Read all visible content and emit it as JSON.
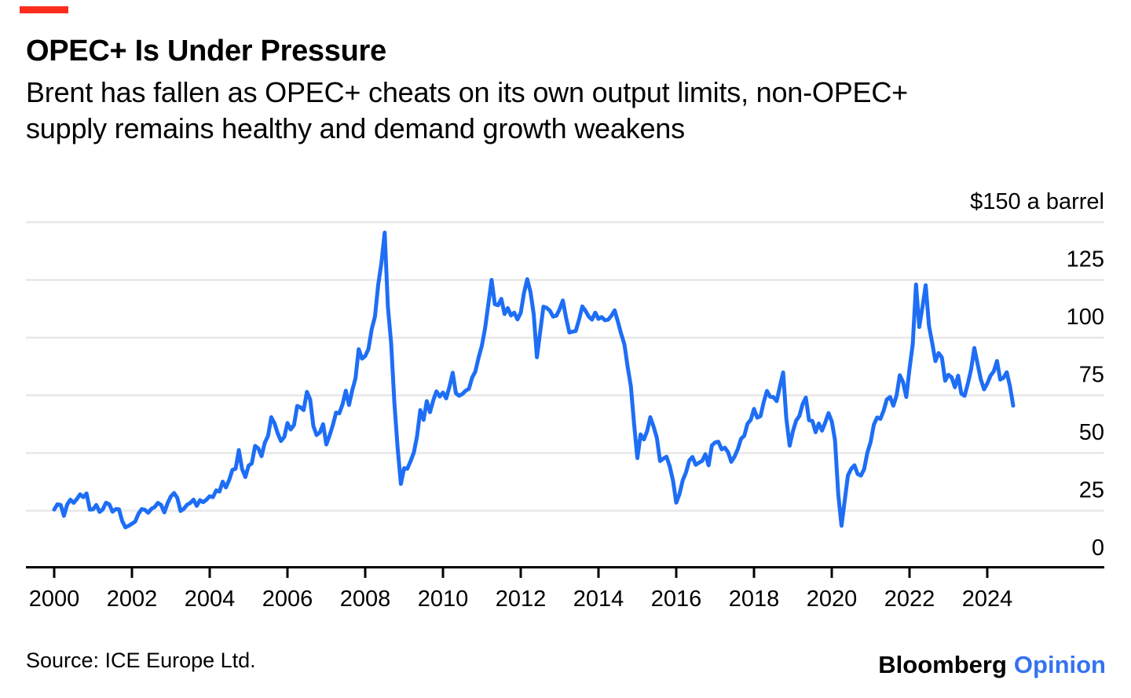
{
  "accent": {
    "red_bar": "#fb2d1d"
  },
  "header": {
    "title": "OPEC+ Is Under Pressure",
    "subtitle_lines": [
      "Brent has fallen as OPEC+ cheats on its own output limits, non-OPEC+",
      "supply remains healthy and demand growth weakens"
    ]
  },
  "footer": {
    "source": "Source: ICE Europe Ltd.",
    "logo_black": "Bloomberg",
    "logo_accent": "Opinion",
    "logo_accent_color": "#3473f0"
  },
  "chart_data": {
    "type": "line",
    "title": "OPEC+ Is Under Pressure",
    "subtitle": "Brent has fallen as OPEC+ cheats on its own output limits, non-OPEC+ supply remains healthy and demand growth weakens",
    "unit_label": "$150 a barrel",
    "grid": true,
    "grid_color": "#e7e7e7",
    "axis_color": "#000000",
    "ylim": [
      0,
      150
    ],
    "legend": "none",
    "y_axis": {
      "side": "right",
      "ticks": [
        {
          "value": 150,
          "label": "$150 a barrel"
        },
        {
          "value": 125,
          "label": "125"
        },
        {
          "value": 100,
          "label": "100"
        },
        {
          "value": 75,
          "label": "75"
        },
        {
          "value": 50,
          "label": "50"
        },
        {
          "value": 25,
          "label": "25"
        },
        {
          "value": 0,
          "label": "0"
        }
      ]
    },
    "x_axis": {
      "ticks": [
        2000,
        2002,
        2004,
        2006,
        2008,
        2010,
        2012,
        2014,
        2016,
        2018,
        2020,
        2022,
        2024
      ]
    },
    "series": [
      {
        "name": "Brent crude price, $ a barrel",
        "color": "#1e6ef5",
        "start_year": 2000,
        "interval_months": 1,
        "values": [
          25.5,
          27.8,
          27.5,
          22.8,
          27.7,
          29.8,
          28.4,
          30.1,
          32.1,
          30.9,
          32.5,
          25.5,
          25.6,
          27.5,
          24.5,
          25.6,
          28.5,
          27.8,
          24.6,
          25.7,
          25.6,
          20.5,
          17.8,
          18.5,
          19.4,
          20.3,
          23.7,
          25.7,
          25.4,
          24.1,
          25.8,
          26.6,
          28.4,
          27.5,
          24.3,
          28.3,
          31.2,
          32.7,
          30.5,
          24.9,
          25.8,
          27.6,
          28.4,
          29.8,
          27.1,
          29.6,
          28.7,
          29.8,
          31.3,
          30.9,
          33.8,
          33.3,
          37.6,
          35.1,
          38.3,
          42.7,
          43.2,
          51.3,
          43.1,
          39.6,
          44.5,
          45.5,
          53.1,
          52.0,
          48.6,
          54.4,
          57.5,
          65.5,
          62.9,
          58.5,
          55.2,
          56.9,
          63.0,
          60.2,
          62.1,
          70.4,
          69.8,
          68.6,
          76.5,
          73.2,
          61.7,
          57.8,
          58.9,
          62.5,
          53.7,
          57.6,
          62.1,
          67.5,
          67.2,
          71.1,
          77.0,
          70.8,
          77.2,
          82.3,
          95.0,
          90.9,
          92.0,
          95.0,
          103.7,
          109.1,
          122.8,
          132.3,
          145.5,
          113.2,
          97.7,
          71.9,
          52.5,
          36.6,
          43.4,
          43.2,
          46.5,
          50.2,
          57.3,
          68.6,
          64.4,
          72.5,
          67.7,
          72.8,
          76.7,
          74.5,
          76.2,
          73.7,
          78.8,
          84.8,
          75.9,
          74.8,
          75.6,
          77.0,
          77.8,
          82.7,
          85.3,
          91.4,
          96.5,
          104.0,
          114.6,
          125.0,
          114.5,
          114.0,
          116.8,
          110.2,
          112.8,
          109.6,
          110.8,
          107.9,
          110.7,
          119.3,
          125.3,
          119.8,
          110.3,
          91.5,
          102.6,
          113.4,
          112.9,
          111.7,
          109.1,
          109.5,
          112.3,
          116.1,
          108.5,
          102.2,
          102.6,
          102.9,
          107.9,
          113.5,
          111.6,
          109.1,
          107.8,
          110.8,
          108.1,
          108.9,
          107.5,
          107.8,
          109.5,
          111.8,
          106.8,
          101.6,
          97.1,
          87.4,
          79.0,
          62.3,
          47.8,
          58.1,
          55.9,
          59.5,
          65.5,
          61.5,
          56.6,
          46.5,
          47.6,
          48.4,
          44.3,
          38.0,
          28.5,
          32.2,
          38.2,
          41.6,
          46.7,
          48.3,
          44.9,
          45.8,
          46.6,
          49.5,
          44.7,
          53.3,
          54.6,
          54.9,
          51.6,
          52.3,
          50.3,
          46.2,
          48.5,
          51.7,
          56.2,
          57.5,
          62.7,
          64.4,
          69.1,
          65.3,
          66.0,
          72.1,
          76.9,
          74.4,
          74.2,
          72.5,
          78.9,
          84.9,
          64.8,
          53.2,
          59.4,
          64.0,
          66.1,
          71.2,
          74.0,
          64.2,
          63.9,
          59.0,
          62.8,
          59.7,
          63.2,
          67.3,
          63.7,
          55.7,
          32.0,
          18.5,
          29.4,
          40.3,
          43.2,
          44.7,
          40.9,
          40.2,
          43.0,
          50.2,
          54.8,
          62.3,
          65.4,
          64.8,
          68.3,
          73.2,
          74.3,
          70.5,
          74.9,
          83.7,
          80.8,
          74.3,
          86.5,
          97.1,
          123.0,
          104.6,
          113.3,
          122.7,
          105.1,
          97.7,
          89.8,
          93.3,
          91.4,
          81.3,
          83.9,
          82.8,
          78.5,
          83.5,
          75.7,
          74.8,
          80.1,
          86.2,
          95.5,
          88.7,
          82.0,
          77.6,
          80.1,
          83.5,
          85.4,
          89.9,
          81.8,
          82.6,
          85.0,
          78.9,
          70.5
        ]
      }
    ]
  }
}
